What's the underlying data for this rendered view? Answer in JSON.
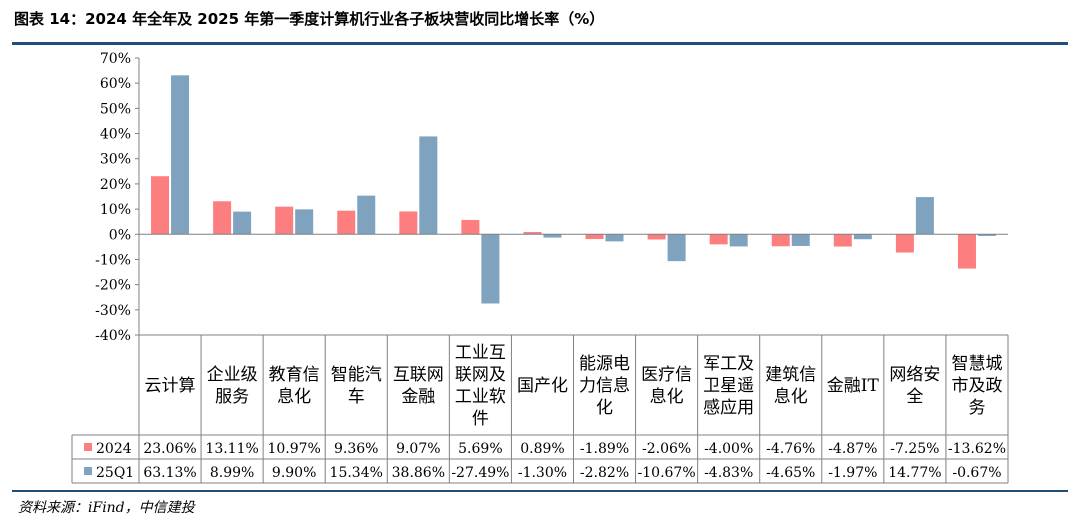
{
  "header": {
    "title": "图表 14：2024 年全年及 2025 年第一季度计算机行业各子板块营收同比增长率（%）"
  },
  "footer": {
    "source": "资料来源：iFind，中信建投"
  },
  "colors": {
    "series_2024": "#fd7e7e",
    "series_25q1": "#7fa3bf",
    "rule": "#1f4e79"
  },
  "chart_data": {
    "type": "bar",
    "categories": [
      [
        "云计算"
      ],
      [
        "企业级",
        "服务"
      ],
      [
        "教育信",
        "息化"
      ],
      [
        "智能汽",
        "车"
      ],
      [
        "互联网",
        "金融"
      ],
      [
        "工业互",
        "联网及",
        "工业软",
        "件"
      ],
      [
        "国产化"
      ],
      [
        "能源电",
        "力信息",
        "化"
      ],
      [
        "医疗信",
        "息化"
      ],
      [
        "军工及",
        "卫星遥",
        "感应用"
      ],
      [
        "建筑信",
        "息化"
      ],
      [
        "金融IT"
      ],
      [
        "网络安",
        "全"
      ],
      [
        "智慧城",
        "市及政",
        "务"
      ]
    ],
    "series": [
      {
        "name": "2024",
        "values": [
          23.06,
          13.11,
          10.97,
          9.36,
          9.07,
          5.69,
          0.89,
          -1.89,
          -2.06,
          -4.0,
          -4.76,
          -4.87,
          -7.25,
          -13.62
        ],
        "labels": [
          "23.06%",
          "13.11%",
          "10.97%",
          "9.36%",
          "9.07%",
          "5.69%",
          "0.89%",
          "-1.89%",
          "-2.06%",
          "-4.00%",
          "-4.76%",
          "-4.87%",
          "-7.25%",
          "-13.62%"
        ]
      },
      {
        "name": "25Q1",
        "values": [
          63.13,
          8.99,
          9.9,
          15.34,
          38.86,
          -27.49,
          -1.3,
          -2.82,
          -10.67,
          -4.83,
          -4.65,
          -1.97,
          14.77,
          -0.67
        ],
        "labels": [
          "63.13%",
          "8.99%",
          "9.90%",
          "15.34%",
          "38.86%",
          "-27.49%",
          "-1.30%",
          "-2.82%",
          "-10.67%",
          "-4.83%",
          "-4.65%",
          "-1.97%",
          "14.77%",
          "-0.67%"
        ]
      }
    ],
    "yticks": [
      "70%",
      "60%",
      "50%",
      "40%",
      "30%",
      "20%",
      "10%",
      "0%",
      "-10%",
      "-20%",
      "-30%",
      "-40%"
    ],
    "ylim": [
      -40,
      70
    ],
    "grid": false,
    "legend": "data-table"
  }
}
